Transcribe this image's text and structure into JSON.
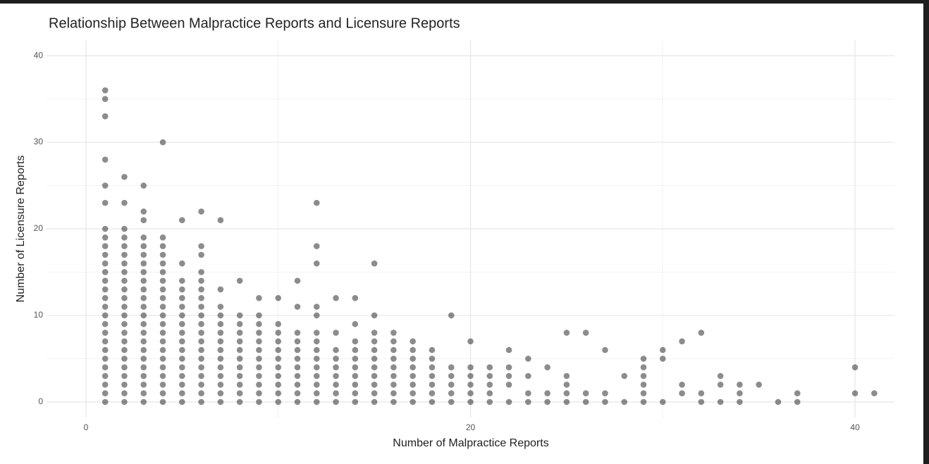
{
  "chart_data": {
    "type": "scatter",
    "title": "Relationship Between Malpractice Reports and Licensure Reports",
    "xlabel": "Number of Malpractice Reports",
    "ylabel": "Number of Licensure Reports",
    "color": "#000000",
    "alpha": 0.45,
    "grid": true,
    "xlim": [
      -2.05,
      42.05
    ],
    "xticks": [
      0,
      20,
      40
    ],
    "ylim": [
      -1.8,
      41.8
    ],
    "yticks": [
      0,
      10,
      20,
      30,
      40
    ],
    "x": [
      1,
      1,
      1,
      1,
      1,
      1,
      1,
      1,
      1,
      1,
      1,
      1,
      1,
      1,
      1,
      1,
      1,
      1,
      1,
      1,
      1,
      1,
      1,
      1,
      1,
      1,
      1,
      2,
      2,
      2,
      2,
      2,
      2,
      2,
      2,
      2,
      2,
      2,
      2,
      2,
      2,
      2,
      2,
      2,
      2,
      2,
      2,
      2,
      2,
      2,
      3,
      3,
      3,
      3,
      3,
      3,
      3,
      3,
      3,
      3,
      3,
      3,
      3,
      3,
      3,
      3,
      3,
      3,
      3,
      3,
      3,
      3,
      3,
      4,
      4,
      4,
      4,
      4,
      4,
      4,
      4,
      4,
      4,
      4,
      4,
      4,
      4,
      4,
      4,
      4,
      4,
      4,
      4,
      4,
      5,
      5,
      5,
      5,
      5,
      5,
      5,
      5,
      5,
      5,
      5,
      5,
      5,
      5,
      5,
      5,
      5,
      6,
      6,
      6,
      6,
      6,
      6,
      6,
      6,
      6,
      6,
      6,
      6,
      6,
      6,
      6,
      6,
      6,
      6,
      6,
      7,
      7,
      7,
      7,
      7,
      7,
      7,
      7,
      7,
      7,
      7,
      7,
      7,
      7,
      8,
      8,
      8,
      8,
      8,
      8,
      8,
      8,
      8,
      8,
      8,
      8,
      9,
      9,
      9,
      9,
      9,
      9,
      9,
      9,
      9,
      9,
      9,
      9,
      10,
      10,
      10,
      10,
      10,
      10,
      10,
      10,
      10,
      10,
      10,
      11,
      11,
      11,
      11,
      11,
      11,
      11,
      11,
      11,
      11,
      11,
      12,
      12,
      12,
      12,
      12,
      12,
      12,
      12,
      12,
      12,
      12,
      12,
      12,
      12,
      13,
      13,
      13,
      13,
      13,
      13,
      13,
      13,
      13,
      14,
      14,
      14,
      14,
      14,
      14,
      14,
      14,
      14,
      14,
      15,
      15,
      15,
      15,
      15,
      15,
      15,
      15,
      15,
      15,
      15,
      16,
      16,
      16,
      16,
      16,
      16,
      16,
      16,
      16,
      17,
      17,
      17,
      17,
      17,
      17,
      17,
      17,
      18,
      18,
      18,
      18,
      18,
      18,
      18,
      19,
      19,
      19,
      19,
      19,
      19,
      20,
      20,
      20,
      20,
      20,
      20,
      21,
      21,
      21,
      21,
      21,
      22,
      22,
      22,
      22,
      22,
      23,
      23,
      23,
      23,
      24,
      24,
      24,
      25,
      25,
      25,
      25,
      25,
      26,
      26,
      26,
      27,
      27,
      27,
      28,
      28,
      29,
      29,
      29,
      29,
      29,
      29,
      30,
      30,
      30,
      31,
      31,
      31,
      32,
      32,
      32,
      33,
      33,
      33,
      34,
      34,
      34,
      35,
      36,
      37,
      37,
      40,
      40,
      41
    ],
    "y": [
      0,
      1,
      2,
      3,
      4,
      5,
      6,
      7,
      8,
      9,
      10,
      11,
      12,
      13,
      14,
      15,
      16,
      17,
      18,
      19,
      20,
      23,
      25,
      28,
      33,
      35,
      36,
      0,
      1,
      2,
      3,
      4,
      5,
      6,
      7,
      8,
      9,
      10,
      11,
      12,
      13,
      14,
      15,
      16,
      17,
      18,
      19,
      20,
      23,
      26,
      0,
      1,
      2,
      3,
      4,
      5,
      6,
      7,
      8,
      9,
      10,
      11,
      12,
      13,
      14,
      15,
      16,
      17,
      18,
      19,
      21,
      22,
      25,
      0,
      1,
      2,
      3,
      4,
      5,
      6,
      7,
      8,
      9,
      10,
      11,
      12,
      13,
      14,
      15,
      16,
      17,
      18,
      19,
      30,
      0,
      1,
      2,
      3,
      4,
      5,
      6,
      7,
      8,
      9,
      10,
      11,
      12,
      13,
      14,
      16,
      21,
      0,
      1,
      2,
      3,
      4,
      5,
      6,
      7,
      8,
      9,
      10,
      11,
      12,
      13,
      14,
      15,
      17,
      18,
      22,
      0,
      1,
      2,
      3,
      4,
      5,
      6,
      7,
      8,
      9,
      10,
      11,
      13,
      21,
      0,
      1,
      2,
      3,
      4,
      5,
      6,
      7,
      8,
      9,
      10,
      14,
      0,
      1,
      2,
      3,
      4,
      5,
      6,
      7,
      8,
      9,
      10,
      12,
      0,
      1,
      2,
      3,
      4,
      5,
      6,
      7,
      8,
      9,
      12,
      0,
      1,
      2,
      3,
      4,
      5,
      6,
      7,
      8,
      11,
      14,
      0,
      1,
      2,
      3,
      4,
      5,
      6,
      7,
      8,
      10,
      11,
      16,
      18,
      23,
      0,
      1,
      2,
      3,
      4,
      5,
      6,
      8,
      12,
      0,
      1,
      2,
      3,
      4,
      5,
      6,
      7,
      9,
      12,
      0,
      1,
      2,
      3,
      4,
      5,
      6,
      7,
      8,
      10,
      16,
      0,
      1,
      2,
      3,
      4,
      5,
      6,
      7,
      8,
      0,
      1,
      2,
      3,
      4,
      5,
      6,
      7,
      0,
      1,
      2,
      3,
      4,
      5,
      6,
      0,
      1,
      2,
      3,
      4,
      10,
      0,
      1,
      2,
      3,
      4,
      7,
      0,
      1,
      2,
      3,
      4,
      0,
      2,
      3,
      4,
      6,
      0,
      1,
      3,
      5,
      0,
      1,
      4,
      0,
      1,
      2,
      3,
      8,
      0,
      1,
      8,
      0,
      1,
      6,
      0,
      3,
      0,
      1,
      2,
      3,
      4,
      5,
      0,
      5,
      6,
      1,
      2,
      7,
      0,
      1,
      8,
      0,
      2,
      3,
      0,
      1,
      2,
      2,
      0,
      0,
      1,
      1,
      4,
      1
    ]
  }
}
